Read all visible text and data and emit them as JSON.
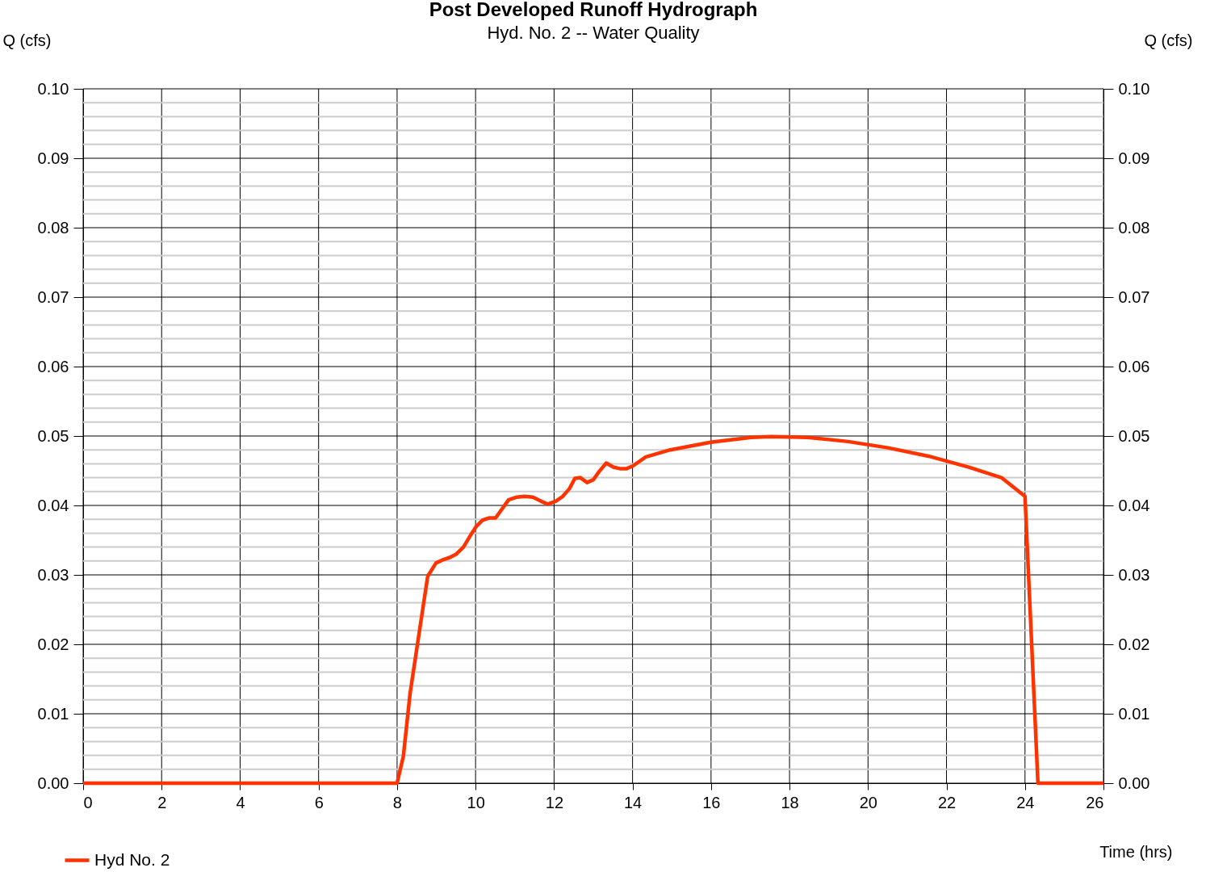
{
  "chart_data": {
    "type": "line",
    "title": "Post Developed Runoff Hydrograph",
    "subtitle": "Hyd. No. 2 -- Water Quality",
    "xlabel": "Time (hrs)",
    "ylabel": "Q (cfs)",
    "y2label": "Q (cfs)",
    "series": [
      {
        "name": "Hyd No. 2",
        "color": "#ff3300",
        "x": [
          0,
          8.0,
          8.16,
          8.33,
          8.54,
          8.78,
          8.99,
          9.18,
          9.34,
          9.51,
          9.69,
          9.86,
          10.02,
          10.18,
          10.35,
          10.51,
          10.84,
          11.05,
          11.25,
          11.46,
          11.67,
          11.83,
          12.04,
          12.22,
          12.39,
          12.53,
          12.67,
          12.84,
          13.0,
          13.15,
          13.33,
          13.52,
          13.68,
          13.85,
          14.01,
          14.34,
          14.96,
          15.99,
          17.02,
          17.53,
          18.46,
          19.49,
          20.51,
          21.54,
          22.57,
          23.4,
          24.0,
          24.33,
          26
        ],
        "values": [
          0,
          0,
          0.0039,
          0.0129,
          0.0208,
          0.0298,
          0.0317,
          0.0322,
          0.0325,
          0.033,
          0.034,
          0.0356,
          0.037,
          0.0379,
          0.0382,
          0.0382,
          0.0408,
          0.0412,
          0.0413,
          0.0412,
          0.0406,
          0.0402,
          0.0406,
          0.0413,
          0.0424,
          0.0439,
          0.044,
          0.0433,
          0.0437,
          0.0449,
          0.0461,
          0.0455,
          0.0453,
          0.0453,
          0.0457,
          0.047,
          0.048,
          0.0491,
          0.0498,
          0.0499,
          0.0498,
          0.0492,
          0.0483,
          0.0471,
          0.0455,
          0.044,
          0.0413,
          0,
          0
        ]
      }
    ],
    "xlim": [
      0,
      26
    ],
    "xticks": [
      0,
      2,
      4,
      6,
      8,
      10,
      12,
      14,
      16,
      18,
      20,
      22,
      24,
      26
    ],
    "ylim": [
      0,
      0.1
    ],
    "yticks": [
      {
        "value": 0,
        "label": "0.00"
      },
      {
        "value": 0.002,
        "label": null
      },
      {
        "value": 0.004,
        "label": null
      },
      {
        "value": 0.006,
        "label": null
      },
      {
        "value": 0.008,
        "label": null
      },
      {
        "value": 0.01,
        "label": "0.01"
      },
      {
        "value": 0.012,
        "label": null
      },
      {
        "value": 0.014,
        "label": null
      },
      {
        "value": 0.016,
        "label": null
      },
      {
        "value": 0.018,
        "label": null
      },
      {
        "value": 0.02,
        "label": "0.02"
      },
      {
        "value": 0.022,
        "label": null
      },
      {
        "value": 0.024,
        "label": null
      },
      {
        "value": 0.026,
        "label": null
      },
      {
        "value": 0.028,
        "label": null
      },
      {
        "value": 0.03,
        "label": "0.03"
      },
      {
        "value": 0.032,
        "label": null
      },
      {
        "value": 0.034,
        "label": null
      },
      {
        "value": 0.036,
        "label": null
      },
      {
        "value": 0.038,
        "label": null
      },
      {
        "value": 0.04,
        "label": "0.04"
      },
      {
        "value": 0.042,
        "label": null
      },
      {
        "value": 0.044,
        "label": null
      },
      {
        "value": 0.046,
        "label": null
      },
      {
        "value": 0.048,
        "label": null
      },
      {
        "value": 0.05,
        "label": "0.05"
      },
      {
        "value": 0.052,
        "label": null
      },
      {
        "value": 0.054,
        "label": null
      },
      {
        "value": 0.056,
        "label": null
      },
      {
        "value": 0.058,
        "label": null
      },
      {
        "value": 0.06,
        "label": "0.06"
      },
      {
        "value": 0.062,
        "label": null
      },
      {
        "value": 0.064,
        "label": null
      },
      {
        "value": 0.066,
        "label": null
      },
      {
        "value": 0.068,
        "label": null
      },
      {
        "value": 0.07,
        "label": "0.07"
      },
      {
        "value": 0.072,
        "label": null
      },
      {
        "value": 0.074,
        "label": null
      },
      {
        "value": 0.076,
        "label": null
      },
      {
        "value": 0.078,
        "label": null
      },
      {
        "value": 0.08,
        "label": "0.08"
      },
      {
        "value": 0.082,
        "label": null
      },
      {
        "value": 0.084,
        "label": null
      },
      {
        "value": 0.086,
        "label": null
      },
      {
        "value": 0.088,
        "label": null
      },
      {
        "value": 0.09,
        "label": "0.09"
      },
      {
        "value": 0.092,
        "label": null
      },
      {
        "value": 0.094,
        "label": null
      },
      {
        "value": 0.096,
        "label": null
      },
      {
        "value": 0.098,
        "label": null
      },
      {
        "value": 0.1,
        "label": "0.10"
      }
    ],
    "y2lim": [
      0,
      0.1
    ],
    "y2ticks": [
      {
        "value": 0,
        "label": "0.00"
      },
      {
        "value": 0.01,
        "label": "0.01"
      },
      {
        "value": 0.02,
        "label": "0.02"
      },
      {
        "value": 0.03,
        "label": "0.03"
      },
      {
        "value": 0.04,
        "label": "0.04"
      },
      {
        "value": 0.05,
        "label": "0.05"
      },
      {
        "value": 0.06,
        "label": "0.06"
      },
      {
        "value": 0.07,
        "label": "0.07"
      },
      {
        "value": 0.08,
        "label": "0.08"
      },
      {
        "value": 0.09,
        "label": "0.09"
      },
      {
        "value": 0.1,
        "label": "0.10"
      }
    ],
    "grid": true,
    "legend": "bottom left",
    "marker": "none",
    "line_style": "solid"
  }
}
